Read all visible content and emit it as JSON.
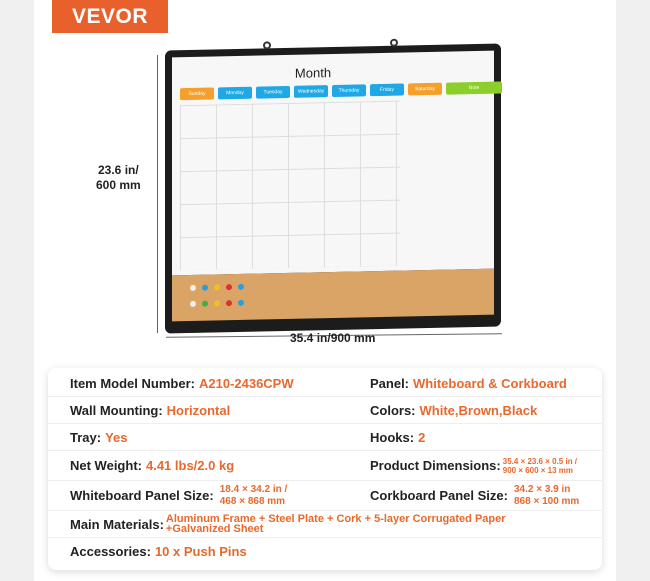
{
  "brand": "VEVOR",
  "board": {
    "title": "Month",
    "days": [
      "Sunday",
      "Monday",
      "Tuesday",
      "Wednesday",
      "Thursday",
      "Friday",
      "Saturday"
    ],
    "note": "Note"
  },
  "dimensions": {
    "height_line1": "23.6 in/",
    "height_line2": "600 mm",
    "width": "35.4 in/900 mm"
  },
  "colors": {
    "accent": "#e8612c",
    "blue": "#1ea8e6",
    "orange": "#f5a02a",
    "green": "#8ccf2a",
    "cork": "#d9a466"
  },
  "specs": {
    "model": {
      "label": "Item Model Number:",
      "value": "A210-2436CPW"
    },
    "panel": {
      "label": "Panel:",
      "value": "Whiteboard & Corkboard"
    },
    "mounting": {
      "label": "Wall Mounting:",
      "value": "Horizontal"
    },
    "colors": {
      "label": "Colors:",
      "value": "White,Brown,Black"
    },
    "tray": {
      "label": "Tray:",
      "value": "Yes"
    },
    "hooks": {
      "label": "Hooks:",
      "value": "2"
    },
    "weight": {
      "label": "Net Weight:",
      "value": "4.41 lbs/2.0 kg"
    },
    "product_dim": {
      "label": "Product Dimensions:",
      "value1": "35.4 × 23.6 ×  0.5 in /",
      "value2": "900 × 600 × 13 mm"
    },
    "wb_size": {
      "label": "Whiteboard Panel Size:",
      "value1": "18.4 × 34.2 in /",
      "value2": "468 × 868 mm"
    },
    "cork_size": {
      "label": "Corkboard Panel Size:",
      "value1": "34.2 × 3.9 in",
      "value2": "868 × 100 mm"
    },
    "materials": {
      "label": "Main Materials:",
      "value1": "Aluminum Frame + Steel Plate + Cork + 5-layer Corrugated Paper",
      "value2": "+Galvanized Sheet"
    },
    "accessories": {
      "label": "Accessories:",
      "value": "10 x Push Pins"
    }
  }
}
